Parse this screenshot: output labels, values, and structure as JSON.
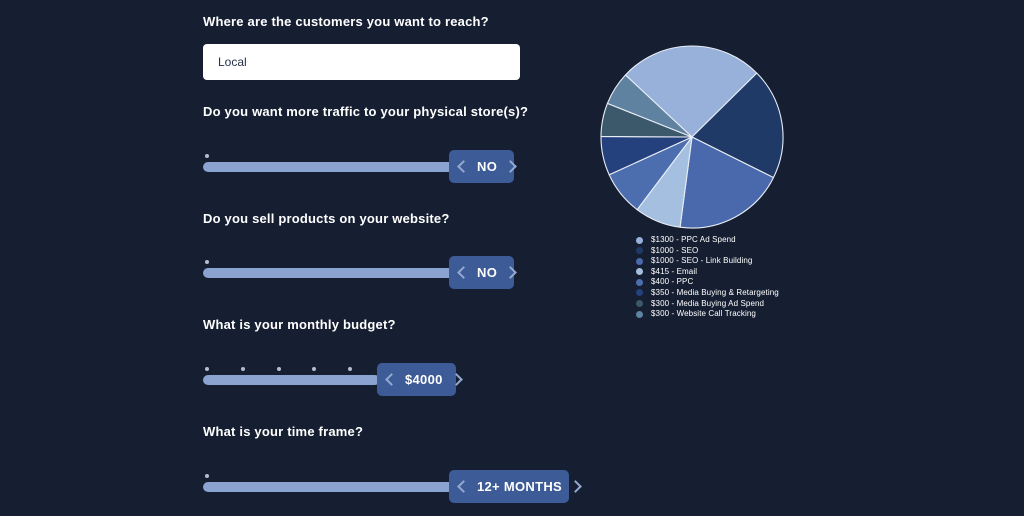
{
  "theme": {
    "background": "#161f32",
    "track_color": "#8ba3d1",
    "handle_color": "#3d5b96",
    "chevron_color": "#94a9d2",
    "heading_color": "#ffffff"
  },
  "form": {
    "questions": [
      {
        "label": "Where are the customers you want to reach?",
        "type": "text-input",
        "value": "Local"
      },
      {
        "label": "Do you want more traffic to your physical store(s)?",
        "type": "slider",
        "value": "NO",
        "ticks": 1
      },
      {
        "label": "Do you sell products on your website?",
        "type": "slider",
        "value": "NO",
        "ticks": 1
      },
      {
        "label": "What is your monthly budget?",
        "type": "slider",
        "value": "$4000",
        "ticks": 5
      },
      {
        "label": "What is your time frame?",
        "type": "slider",
        "value": "12+ MONTHS",
        "ticks": 1
      }
    ]
  },
  "chart_data": {
    "type": "pie",
    "title": "",
    "legend_position": "bottom-left",
    "start_angle_deg": -47,
    "total": 5065,
    "slices": [
      {
        "label": "$1300 - PPC Ad Spend",
        "value": 1300,
        "color": "#97b1da"
      },
      {
        "label": "$1000 - SEO",
        "value": 1000,
        "color": "#203a68"
      },
      {
        "label": "$1000 - SEO - Link Building",
        "value": 1000,
        "color": "#4a69ad"
      },
      {
        "label": "$415 - Email",
        "value": 415,
        "color": "#a4bfe0"
      },
      {
        "label": "$400 - PPC",
        "value": 400,
        "color": "#4c6dae"
      },
      {
        "label": "$350 - Media Buying & Retargeting",
        "value": 350,
        "color": "#24417e"
      },
      {
        "label": "$300 - Media Buying Ad Spend",
        "value": 300,
        "color": "#3c596c"
      },
      {
        "label": "$300 - Website Call Tracking",
        "value": 300,
        "color": "#5e82a0"
      }
    ]
  }
}
